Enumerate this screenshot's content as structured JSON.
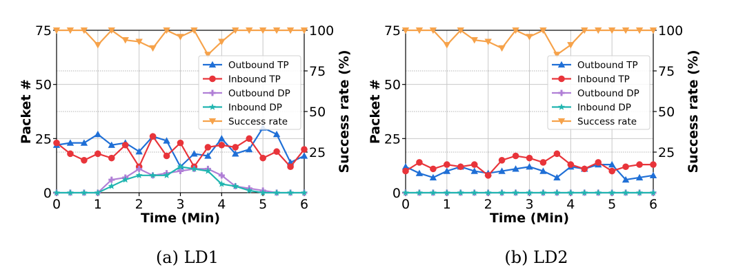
{
  "chart_data": [
    {
      "type": "line",
      "caption": "(a) LD1",
      "xlabel": "Time (Min)",
      "ylabel": "Packet #",
      "ylabel_right": "Success rate (%)",
      "xlim": [
        0,
        6
      ],
      "ylim": [
        0,
        75
      ],
      "ylim_right": [
        0,
        100
      ],
      "x_ticks": [
        "0",
        "1",
        "2",
        "3",
        "4",
        "5",
        "6"
      ],
      "y_ticks": [
        "0",
        "25",
        "50",
        "75"
      ],
      "y_ticks_right": [
        "25",
        "50",
        "75",
        "100"
      ],
      "grid": true,
      "legend_position": "center-right",
      "x": [
        0,
        0.333,
        0.667,
        1,
        1.333,
        1.667,
        2,
        2.333,
        2.667,
        3,
        3.333,
        3.667,
        4,
        4.333,
        4.667,
        5,
        5.333,
        5.667,
        6
      ],
      "series": [
        {
          "name": "Outbound TP",
          "axis": "left",
          "color": "#1f6fd6",
          "marker": "triangle",
          "values": [
            22,
            23,
            23,
            27,
            22,
            23,
            19,
            26,
            24,
            12,
            18,
            17,
            25,
            18,
            20,
            30,
            27,
            14,
            17
          ]
        },
        {
          "name": "Inbound TP",
          "axis": "left",
          "color": "#e8343a",
          "marker": "circle",
          "values": [
            23,
            18,
            15,
            18,
            16,
            22,
            12,
            26,
            17,
            23,
            12,
            21,
            22,
            21,
            25,
            16,
            19,
            12,
            20
          ]
        },
        {
          "name": "Outbound DP",
          "axis": "left",
          "color": "#b07fd6",
          "marker": "plus",
          "values": [
            0,
            0,
            0,
            0,
            6,
            7,
            11,
            8,
            9,
            10,
            11,
            11,
            8,
            3,
            2,
            1,
            0,
            0,
            0
          ]
        },
        {
          "name": "Inbound DP",
          "axis": "left",
          "color": "#20b5b0",
          "marker": "star",
          "values": [
            0,
            0,
            0,
            0,
            3,
            6,
            8,
            8,
            8,
            12,
            11,
            10,
            4,
            3,
            1,
            0,
            0,
            0,
            0
          ]
        },
        {
          "name": "Success rate",
          "axis": "right",
          "color": "#f6a24a",
          "marker": "triangle-down",
          "values": [
            100,
            100,
            100,
            91,
            100,
            94,
            93,
            89,
            100,
            96,
            100,
            85,
            93,
            100,
            100,
            100,
            100,
            100,
            100
          ]
        }
      ]
    },
    {
      "type": "line",
      "caption": "(b) LD2",
      "xlabel": "Time (Min)",
      "ylabel": "Packet #",
      "ylabel_right": "Success rate (%)",
      "xlim": [
        0,
        6
      ],
      "ylim": [
        0,
        75
      ],
      "ylim_right": [
        0,
        100
      ],
      "x_ticks": [
        "0",
        "1",
        "2",
        "3",
        "4",
        "5",
        "6"
      ],
      "y_ticks": [
        "0",
        "25",
        "50",
        "75"
      ],
      "y_ticks_right": [
        "25",
        "50",
        "75",
        "100"
      ],
      "grid": true,
      "legend_position": "center-right",
      "x": [
        0,
        0.333,
        0.667,
        1,
        1.333,
        1.667,
        2,
        2.333,
        2.667,
        3,
        3.333,
        3.667,
        4,
        4.333,
        4.667,
        5,
        5.333,
        5.667,
        6
      ],
      "series": [
        {
          "name": "Outbound TP",
          "axis": "left",
          "color": "#1f6fd6",
          "marker": "triangle",
          "values": [
            12,
            9,
            7,
            10,
            12,
            10,
            9,
            10,
            11,
            12,
            10,
            7,
            12,
            11,
            13,
            13,
            6,
            7,
            8
          ]
        },
        {
          "name": "Inbound TP",
          "axis": "left",
          "color": "#e8343a",
          "marker": "circle",
          "values": [
            10,
            14,
            11,
            13,
            12,
            13,
            8,
            15,
            17,
            16,
            14,
            18,
            13,
            11,
            14,
            10,
            12,
            13,
            13
          ]
        },
        {
          "name": "Outbound DP",
          "axis": "left",
          "color": "#b07fd6",
          "marker": "plus",
          "values": [
            0,
            0,
            0,
            0,
            0,
            0,
            0,
            0,
            0,
            0,
            0,
            0,
            0,
            0,
            0,
            0,
            0,
            0,
            0
          ]
        },
        {
          "name": "Inbound DP",
          "axis": "left",
          "color": "#20b5b0",
          "marker": "star",
          "values": [
            0,
            0,
            0,
            0,
            0,
            0,
            0,
            0,
            0,
            0,
            0,
            0,
            0,
            0,
            0,
            0,
            0,
            0,
            0
          ]
        },
        {
          "name": "Success rate",
          "axis": "right",
          "color": "#f6a24a",
          "marker": "triangle-down",
          "values": [
            100,
            100,
            100,
            91,
            100,
            94,
            93,
            89,
            100,
            96,
            100,
            85,
            91,
            100,
            100,
            100,
            100,
            100,
            100
          ]
        }
      ]
    }
  ]
}
